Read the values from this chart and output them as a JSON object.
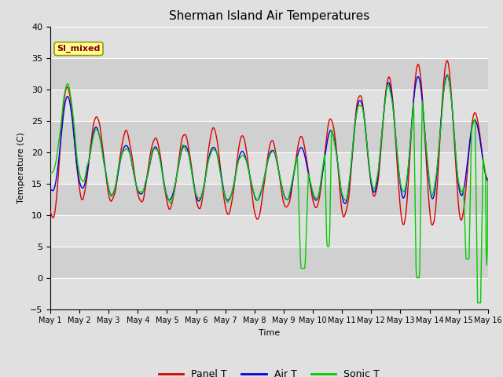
{
  "title": "Sherman Island Air Temperatures",
  "xlabel": "Time",
  "ylabel": "Temperature (C)",
  "ylim": [
    -5,
    40
  ],
  "yticks": [
    -5,
    0,
    5,
    10,
    15,
    20,
    25,
    30,
    35,
    40
  ],
  "label_box": "SI_mixed",
  "legend": [
    "Panel T",
    "Air T",
    "Sonic T"
  ],
  "colors": {
    "panel": "#dd0000",
    "air": "#0000dd",
    "sonic": "#00cc00"
  },
  "xticklabels": [
    "May 1",
    "May 2",
    "May 3",
    "May 4",
    "May 5",
    "May 6",
    "May 7",
    "May 8",
    "May 9",
    "May 10",
    "May 11",
    "May 12",
    "May 13",
    "May 14",
    "May 15",
    "May 16"
  ],
  "n_points": 720,
  "days": 15,
  "band_colors": [
    "#e8e8e8",
    "#d4d4d4"
  ],
  "fig_bg": "#e0e0e0",
  "ax_bg": "#e8e8e8"
}
